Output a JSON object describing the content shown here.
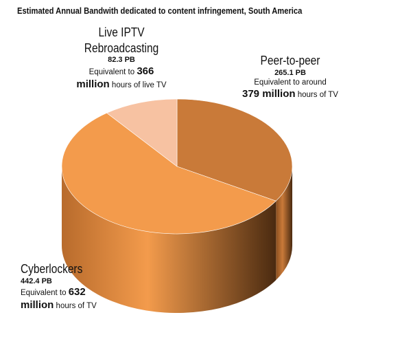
{
  "chart_data": {
    "type": "pie",
    "title": "Estimated Annual Bandwith dedicated to content infringement, South America",
    "unit": "PB",
    "slices": [
      {
        "name": "Peer-to-peer",
        "value": 265.1,
        "value_label": "265.1 PB",
        "equiv_prefix": "Equivalent to around",
        "equiv_number": "379 million",
        "equiv_suffix": "hours of TV",
        "color_top": "#c97a39",
        "color_side": "#8a4f1f"
      },
      {
        "name": "Cyberlockers",
        "value": 442.4,
        "value_label": "442.4 PB",
        "equiv_prefix": "Equivalent to",
        "equiv_number": "632",
        "equiv_number2": "million",
        "equiv_suffix": "hours of TV",
        "color_top": "#f39b4c",
        "color_side": "#b86b2c"
      },
      {
        "name_line1": "Live IPTV",
        "name_line2": "Rebroadcasting",
        "value": 82.3,
        "value_label": "82.3 PB",
        "equiv_prefix": "Equivalent to",
        "equiv_number": "366",
        "equiv_number2": "million",
        "equiv_suffix": "hours of live TV",
        "color_top": "#f7c2a2",
        "color_side": "#c48f70"
      }
    ]
  }
}
